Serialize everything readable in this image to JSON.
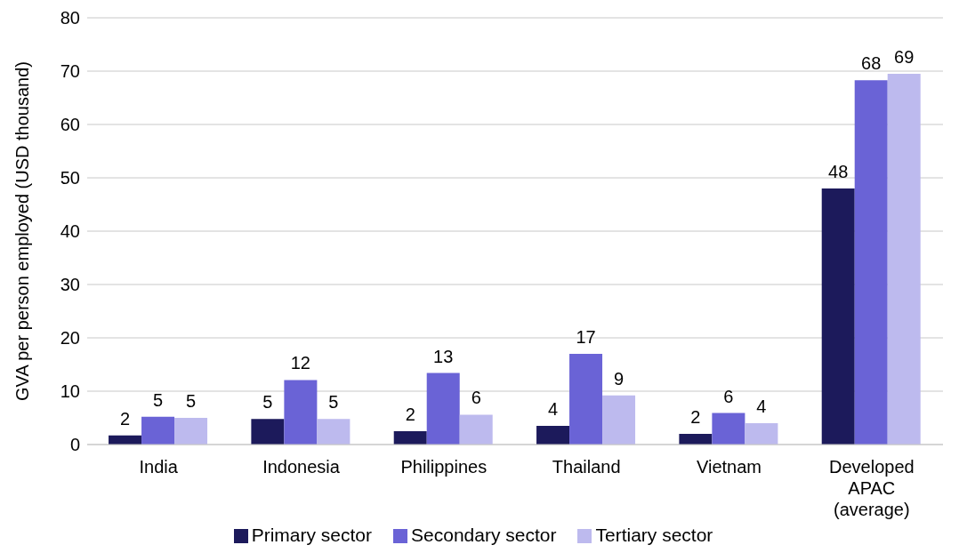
{
  "chart_data": {
    "type": "bar",
    "ylabel": "GVA per person employed (USD thousand)",
    "categories": [
      "India",
      "Indonesia",
      "Philippines",
      "Thailand",
      "Vietnam",
      "Developed APAC (average)"
    ],
    "series": [
      {
        "name": "Primary sector",
        "color": "#1c1a5b",
        "values": [
          1.7,
          4.8,
          2.5,
          3.5,
          2.0,
          48.0
        ],
        "value_labels": [
          "2",
          "5",
          "2",
          "4",
          "2",
          "48"
        ]
      },
      {
        "name": "Secondary sector",
        "color": "#6a63d6",
        "values": [
          5.2,
          12.1,
          13.4,
          17.0,
          5.9,
          68.3
        ],
        "value_labels": [
          "5",
          "12",
          "13",
          "17",
          "6",
          "68"
        ]
      },
      {
        "name": "Tertiary sector",
        "color": "#bdbaee",
        "values": [
          5.0,
          4.8,
          5.6,
          9.2,
          4.0,
          69.5
        ],
        "value_labels": [
          "5",
          "5",
          "6",
          "9",
          "4",
          "69"
        ]
      }
    ],
    "ylim": [
      0,
      80
    ],
    "yticks": [
      0,
      10,
      20,
      30,
      40,
      50,
      60,
      70,
      80
    ],
    "grid": "y",
    "legend": "bottom"
  }
}
